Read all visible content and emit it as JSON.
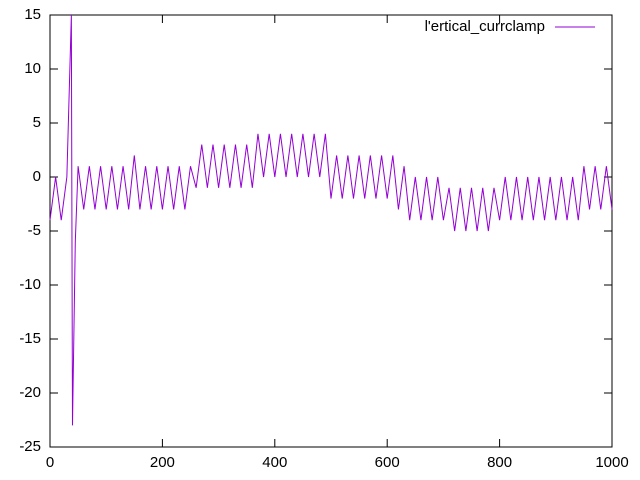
{
  "chart_data": {
    "type": "line",
    "x": [
      0,
      10,
      20,
      30,
      38,
      40,
      45,
      50,
      60,
      70,
      80,
      90,
      100,
      110,
      120,
      130,
      140,
      150,
      160,
      170,
      180,
      190,
      200,
      210,
      220,
      230,
      240,
      250,
      260,
      270,
      280,
      290,
      300,
      310,
      320,
      330,
      340,
      350,
      360,
      370,
      380,
      390,
      400,
      410,
      420,
      430,
      440,
      450,
      460,
      470,
      480,
      490,
      500,
      510,
      520,
      530,
      540,
      550,
      560,
      570,
      580,
      590,
      600,
      610,
      620,
      630,
      640,
      650,
      660,
      670,
      680,
      690,
      700,
      710,
      720,
      730,
      740,
      750,
      760,
      770,
      780,
      790,
      800,
      810,
      820,
      830,
      840,
      850,
      860,
      870,
      880,
      890,
      900,
      910,
      920,
      930,
      940,
      950,
      960,
      970,
      980,
      990,
      1000
    ],
    "series": [
      {
        "name": "l'ertical_currclamp",
        "color": "#9400d3",
        "values": [
          -4,
          0,
          -4,
          0,
          15,
          -23,
          -6,
          1,
          -3,
          1,
          -3,
          1,
          -3,
          1,
          -3,
          1,
          -3,
          2,
          -3,
          1,
          -3,
          1,
          -3,
          1,
          -3,
          1,
          -3,
          1,
          -1,
          3,
          -1,
          3,
          -1,
          3,
          -1,
          3,
          -1,
          3,
          -1,
          4,
          0,
          4,
          0,
          4,
          0,
          4,
          0,
          4,
          0,
          4,
          0,
          4,
          -2,
          2,
          -2,
          2,
          -2,
          2,
          -2,
          2,
          -2,
          2,
          -2,
          2,
          -3,
          1,
          -4,
          0,
          -4,
          0,
          -4,
          0,
          -4,
          -1,
          -5,
          -1,
          -5,
          -1,
          -5,
          -1,
          -5,
          -1,
          -4,
          0,
          -4,
          0,
          -4,
          0,
          -4,
          0,
          -4,
          0,
          -4,
          0,
          -4,
          0,
          -4,
          1,
          -3,
          1,
          -3,
          1,
          -3
        ]
      }
    ],
    "xlim": [
      0,
      1000
    ],
    "xticks": [
      0,
      200,
      400,
      600,
      800,
      1000
    ],
    "ylim": [
      -25,
      15
    ],
    "yticks": [
      -25,
      -20,
      -15,
      -10,
      -5,
      0,
      5,
      10,
      15
    ],
    "legend": "top-right"
  }
}
